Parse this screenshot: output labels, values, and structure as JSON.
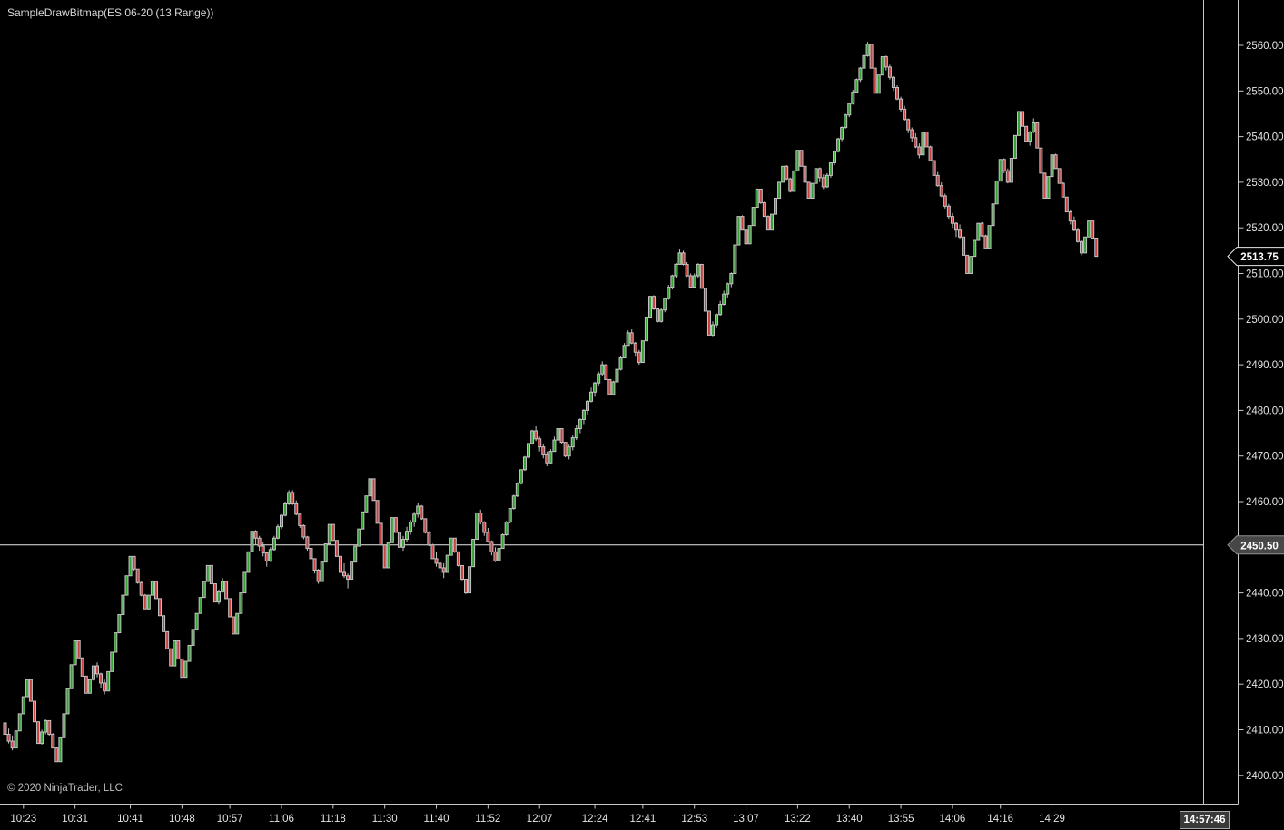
{
  "window": {
    "title": "SampleDrawBitmap(ES 06-20 (13 Range))",
    "copyright": "© 2020 NinjaTrader, LLC",
    "clock": "14:57:46"
  },
  "colors": {
    "background": "#000000",
    "axis_line": "#c8c8c8",
    "label_text": "#e4e4e4",
    "up_body": "#33a133",
    "down_body": "#c64242",
    "candle_outline": "#c4c4c4",
    "wick": "#c4c4c4",
    "horizontal_line": "#e8e8e8",
    "last_price_tag_fill": "#000000",
    "last_price_tag_border": "#e8e8e8",
    "line_tag_fill": "#474747",
    "line_tag_border": "#909090",
    "tag_text": "#ffffff"
  },
  "chart_data": {
    "type": "candlestick",
    "title": "SampleDrawBitmap(ES 06-20 (13 Range))",
    "instrument": "ES 06-20",
    "bar_type": "13 Range",
    "tick_size": 0.25,
    "bar_range_points": 3.25,
    "bars_total": 297,
    "first_open": 2411.5,
    "y_axis": {
      "min": 2400,
      "max": 2560,
      "tick_step": 10,
      "ticks": [
        {
          "price": 2560,
          "label": "2560.00"
        },
        {
          "price": 2550,
          "label": "2550.00"
        },
        {
          "price": 2540,
          "label": "2540.00"
        },
        {
          "price": 2530,
          "label": "2530.00"
        },
        {
          "price": 2520,
          "label": "2520.00"
        },
        {
          "price": 2510,
          "label": "2510.00"
        },
        {
          "price": 2500,
          "label": "2500.00"
        },
        {
          "price": 2490,
          "label": "2490.00"
        },
        {
          "price": 2480,
          "label": "2480.00"
        },
        {
          "price": 2470,
          "label": "2470.00"
        },
        {
          "price": 2460,
          "label": "2460.00"
        },
        {
          "price": 2440,
          "label": "2440.00"
        },
        {
          "price": 2430,
          "label": "2430.00"
        },
        {
          "price": 2420,
          "label": "2420.00"
        },
        {
          "price": 2410,
          "label": "2410.00"
        },
        {
          "price": 2400,
          "label": "2400.00"
        }
      ]
    },
    "x_axis": {
      "ticks": [
        {
          "label": "10:23",
          "bar": 5
        },
        {
          "label": "10:31",
          "bar": 19
        },
        {
          "label": "10:41",
          "bar": 34
        },
        {
          "label": "10:48",
          "bar": 48
        },
        {
          "label": "10:57",
          "bar": 61
        },
        {
          "label": "11:06",
          "bar": 75
        },
        {
          "label": "11:18",
          "bar": 89
        },
        {
          "label": "11:30",
          "bar": 103
        },
        {
          "label": "11:40",
          "bar": 117
        },
        {
          "label": "11:52",
          "bar": 131
        },
        {
          "label": "12:07",
          "bar": 145
        },
        {
          "label": "12:24",
          "bar": 160
        },
        {
          "label": "12:41",
          "bar": 173
        },
        {
          "label": "12:53",
          "bar": 187
        },
        {
          "label": "13:07",
          "bar": 201
        },
        {
          "label": "13:22",
          "bar": 215
        },
        {
          "label": "13:40",
          "bar": 229
        },
        {
          "label": "13:55",
          "bar": 243
        },
        {
          "label": "14:06",
          "bar": 257
        },
        {
          "label": "14:16",
          "bar": 270
        },
        {
          "label": "14:29",
          "bar": 284
        }
      ]
    },
    "horizontal_line": {
      "price": 2450.5,
      "label": "2450.50"
    },
    "last_price": {
      "price": 2513.75,
      "label": "2513.75"
    },
    "close_pivots": [
      [
        0,
        2409
      ],
      [
        2,
        2406
      ],
      [
        6,
        2421
      ],
      [
        9,
        2407
      ],
      [
        11,
        2412
      ],
      [
        14,
        2403
      ],
      [
        19,
        2429.5
      ],
      [
        22,
        2418
      ],
      [
        24,
        2424
      ],
      [
        27,
        2418.5
      ],
      [
        34,
        2448
      ],
      [
        38,
        2436.5
      ],
      [
        40,
        2442.5
      ],
      [
        45,
        2424
      ],
      [
        46,
        2429.5
      ],
      [
        48,
        2421.5
      ],
      [
        55,
        2446
      ],
      [
        57,
        2438
      ],
      [
        59,
        2442.5
      ],
      [
        62,
        2431
      ],
      [
        67,
        2453.5
      ],
      [
        71,
        2447
      ],
      [
        77,
        2462
      ],
      [
        85,
        2442.5
      ],
      [
        88,
        2455
      ],
      [
        91,
        2444.5
      ],
      [
        93,
        2443
      ],
      [
        99,
        2465
      ],
      [
        103,
        2445.5
      ],
      [
        105,
        2456.5
      ],
      [
        107,
        2450
      ],
      [
        112,
        2459
      ],
      [
        116,
        2447.5
      ],
      [
        119,
        2444.5
      ],
      [
        121,
        2452
      ],
      [
        125,
        2440
      ],
      [
        128,
        2457.5
      ],
      [
        133,
        2447
      ],
      [
        143,
        2475.5
      ],
      [
        147,
        2468.5
      ],
      [
        150,
        2476
      ],
      [
        152,
        2470
      ],
      [
        162,
        2490
      ],
      [
        164,
        2483.5
      ],
      [
        169,
        2497
      ],
      [
        172,
        2490.5
      ],
      [
        175,
        2505
      ],
      [
        177,
        2499.5
      ],
      [
        183,
        2514.5
      ],
      [
        186,
        2507
      ],
      [
        188,
        2512
      ],
      [
        191,
        2496.5
      ],
      [
        197,
        2510
      ],
      [
        199,
        2522.5
      ],
      [
        201,
        2516.5
      ],
      [
        204,
        2528.5
      ],
      [
        207,
        2519.5
      ],
      [
        211,
        2533.5
      ],
      [
        213,
        2528
      ],
      [
        215,
        2537
      ],
      [
        218,
        2526.5
      ],
      [
        220,
        2533
      ],
      [
        222,
        2529
      ],
      [
        234,
        2560.25
      ],
      [
        236,
        2549.5
      ],
      [
        238,
        2557.5
      ],
      [
        245,
        2541.5
      ],
      [
        248,
        2536
      ],
      [
        249,
        2541
      ],
      [
        252,
        2531.5
      ],
      [
        256,
        2522.5
      ],
      [
        259,
        2518
      ],
      [
        261,
        2510
      ],
      [
        264,
        2521
      ],
      [
        266,
        2515.5
      ],
      [
        270,
        2535
      ],
      [
        272,
        2530
      ],
      [
        275,
        2545.5
      ],
      [
        277,
        2539
      ],
      [
        279,
        2543
      ],
      [
        282,
        2526.5
      ],
      [
        284,
        2536
      ],
      [
        288,
        2523.5
      ],
      [
        290,
        2519.5
      ],
      [
        292,
        2514.5
      ],
      [
        294,
        2521.5
      ],
      [
        296,
        2513.75
      ]
    ]
  }
}
